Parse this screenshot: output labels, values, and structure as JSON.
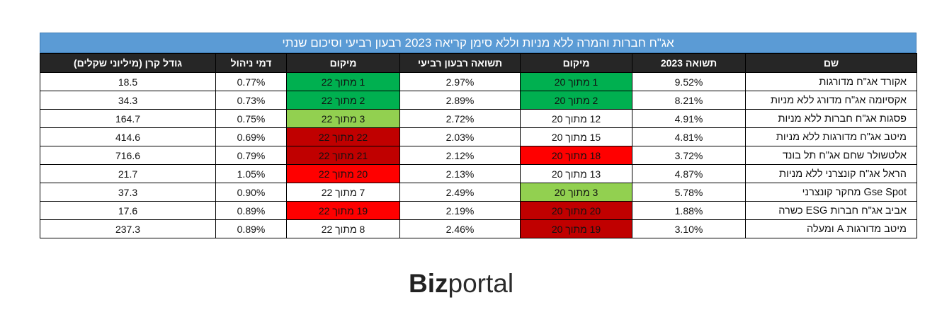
{
  "table": {
    "title": "אג\"ח חברות והמרה ללא מניות וללא סימן קריאה 2023 רבעון רביעי וסיכום שנתי",
    "headers": [
      "שם",
      "תשואה 2023",
      "מיקום",
      "תשואה רבעון רביעי",
      "מיקום",
      "דמי ניהול",
      "גודל קרן (מיליוני שקלים)"
    ],
    "rows": [
      {
        "name": "אקורד אג\"ח מדורגות",
        "ytd": "9.52%",
        "rank_ytd": "1 מתוך 20",
        "q4": "2.97%",
        "rank_q4": "1 מתוך 22",
        "fee": "0.77%",
        "size": "18.5"
      },
      {
        "name": "אקסיומה אג\"ח מדורג ללא מניות",
        "ytd": "8.21%",
        "rank_ytd": "2 מתוך 20",
        "q4": "2.89%",
        "rank_q4": "2 מתוך 22",
        "fee": "0.73%",
        "size": "34.3"
      },
      {
        "name": "פסגות אג\"ח חברות ללא מניות",
        "ytd": "4.91%",
        "rank_ytd": "12 מתוך 20",
        "q4": "2.72%",
        "rank_q4": "3 מתוך 22",
        "fee": "0.75%",
        "size": "164.7"
      },
      {
        "name": "מיטב אג\"ח מדורגות ללא מניות",
        "ytd": "4.81%",
        "rank_ytd": "15 מתוך 20",
        "q4": "2.03%",
        "rank_q4": "22 מתוך 22",
        "fee": "0.69%",
        "size": "414.6"
      },
      {
        "name": "אלטשולר שחם אג\"ח תל בונד",
        "ytd": "3.72%",
        "rank_ytd": "18 מתוך 20",
        "q4": "2.12%",
        "rank_q4": "21 מתוך 22",
        "fee": "0.79%",
        "size": "716.6"
      },
      {
        "name": "הראל אג\"ח קונצרני ללא מניות",
        "ytd": "4.87%",
        "rank_ytd": "13 מתוך 20",
        "q4": "2.13%",
        "rank_q4": "20 מתוך 22",
        "fee": "1.05%",
        "size": "21.7"
      },
      {
        "name": "Gse Spot מחקר קונצרני",
        "ytd": "5.78%",
        "rank_ytd": "3 מתוך 20",
        "q4": "2.49%",
        "rank_q4": "7 מתוך 22",
        "fee": "0.90%",
        "size": "37.3"
      },
      {
        "name": "אביב אג\"ח חברות ESG כשרה",
        "ytd": "1.88%",
        "rank_ytd": "20 מתוך 20",
        "q4": "2.19%",
        "rank_q4": "19 מתוך 22",
        "fee": "0.89%",
        "size": "17.6"
      },
      {
        "name": "מיטב מדורגות A ומעלה",
        "ytd": "3.10%",
        "rank_ytd": "19 מתוך 20",
        "q4": "2.46%",
        "rank_q4": "8 מתוך 22",
        "fee": "0.89%",
        "size": "237.3"
      }
    ]
  },
  "logo": {
    "part1": "Biz",
    "part2": "portal"
  },
  "colors": {
    "title_bg": "#5b9bd5",
    "header_bg": "#262626",
    "rank_green": "#00b050",
    "rank_lightgreen": "#92d050",
    "rank_red": "#ff0000",
    "rank_darkred": "#c00000",
    "rank_none": "#ffffff"
  },
  "rank_colors": {
    "rank_ytd": [
      "green",
      "green",
      "none",
      "none",
      "red",
      "none",
      "lightgreen",
      "darkred",
      "darkred"
    ],
    "rank_q4": [
      "green",
      "green",
      "lightgreen",
      "darkred",
      "darkred",
      "red",
      "none",
      "red",
      "none"
    ]
  }
}
